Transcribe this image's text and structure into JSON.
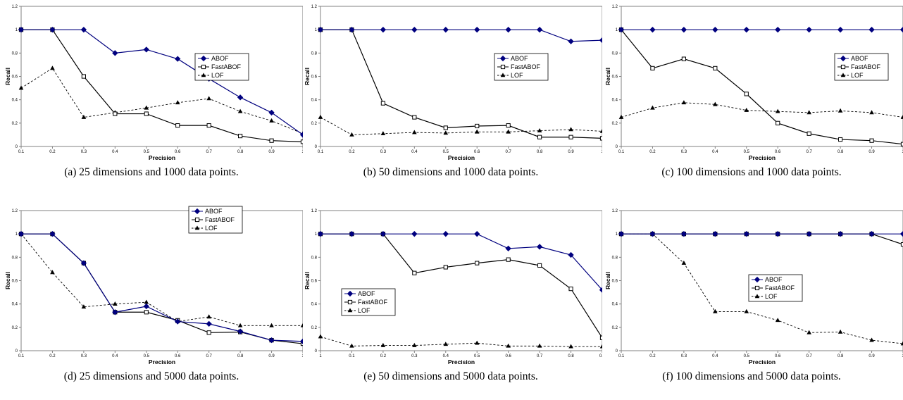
{
  "chart_data": [
    {
      "type": "line",
      "caption": "(a) 25 dimensions and 1000 data points.",
      "xlabel": "Precision",
      "ylabel": "Recall",
      "x": [
        0.1,
        0.2,
        0.3,
        0.4,
        0.5,
        0.6,
        0.7,
        0.8,
        0.9,
        1
      ],
      "x_ticks": [
        "0.1",
        "0.2",
        "0.3",
        "0.4",
        "0.5",
        "0.6",
        "0.7",
        "0.8",
        "0.9",
        "1"
      ],
      "y_ticks": [
        "0",
        "0.2",
        "0.4",
        "0.6",
        "0.8",
        "1",
        "1.2"
      ],
      "ylim": [
        0,
        1.2
      ],
      "legend_position": "right",
      "series": [
        {
          "name": "ABOF",
          "values": [
            1,
            1,
            1,
            0.8,
            0.83,
            0.75,
            0.58,
            0.42,
            0.29,
            0.1
          ]
        },
        {
          "name": "FastABOF",
          "values": [
            1,
            1,
            0.6,
            0.28,
            0.28,
            0.18,
            0.18,
            0.09,
            0.05,
            0.04
          ]
        },
        {
          "name": "LOF",
          "values": [
            0.5,
            0.67,
            0.25,
            0.29,
            0.33,
            0.375,
            0.41,
            0.3,
            0.22,
            0.11
          ]
        }
      ]
    },
    {
      "type": "line",
      "caption": "(b) 50 dimensions and 1000 data points.",
      "xlabel": "Precision",
      "ylabel": "Recall",
      "x": [
        0.1,
        0.2,
        0.3,
        0.4,
        0.5,
        0.6,
        0.7,
        0.8,
        0.9,
        1
      ],
      "x_ticks": [
        "0.1",
        "0.2",
        "0.3",
        "0.4",
        "0.5",
        "0.6",
        "0.7",
        "0.8",
        "0.9",
        "1"
      ],
      "y_ticks": [
        "0",
        "0.2",
        "0.4",
        "0.6",
        "0.8",
        "1",
        "1.2"
      ],
      "ylim": [
        0,
        1.2
      ],
      "legend_position": "right",
      "series": [
        {
          "name": "ABOF",
          "values": [
            1,
            1,
            1,
            1,
            1,
            1,
            1,
            1,
            0.9,
            0.91
          ]
        },
        {
          "name": "FastABOF",
          "values": [
            1,
            1,
            0.37,
            0.25,
            0.16,
            0.175,
            0.18,
            0.08,
            0.08,
            0.07
          ]
        },
        {
          "name": "LOF",
          "values": [
            0.25,
            0.1,
            0.11,
            0.12,
            0.115,
            0.125,
            0.125,
            0.135,
            0.145,
            0.13
          ]
        }
      ]
    },
    {
      "type": "line",
      "caption": "(c) 100 dimensions and 1000 data points.",
      "xlabel": "Precision",
      "ylabel": "Recall",
      "x": [
        0.1,
        0.2,
        0.3,
        0.4,
        0.5,
        0.6,
        0.7,
        0.8,
        0.9,
        1
      ],
      "x_ticks": [
        "0.1",
        "0.2",
        "0.3",
        "0.4",
        "0.5",
        "0.6",
        "0.7",
        "0.8",
        "0.9",
        "1"
      ],
      "y_ticks": [
        "0",
        "0.2",
        "0.4",
        "0.6",
        "0.8",
        "1",
        "1.2"
      ],
      "ylim": [
        0,
        1.2
      ],
      "legend_position": "right",
      "series": [
        {
          "name": "ABOF",
          "values": [
            1,
            1,
            1,
            1,
            1,
            1,
            1,
            1,
            1,
            1
          ]
        },
        {
          "name": "FastABOF",
          "values": [
            1,
            0.67,
            0.75,
            0.67,
            0.45,
            0.2,
            0.11,
            0.06,
            0.05,
            0.02
          ]
        },
        {
          "name": "LOF",
          "values": [
            0.25,
            0.33,
            0.375,
            0.36,
            0.31,
            0.3,
            0.29,
            0.305,
            0.29,
            0.25
          ]
        }
      ]
    },
    {
      "type": "line",
      "caption": "(d) 25 dimensions and 5000 data points.",
      "xlabel": "Precision",
      "ylabel": "Recall",
      "x": [
        0.1,
        0.2,
        0.3,
        0.4,
        0.5,
        0.6,
        0.7,
        0.8,
        0.9,
        1
      ],
      "x_ticks": [
        "0.1",
        "0.2",
        "0.3",
        "0.4",
        "0.5",
        "0.6",
        "0.7",
        "0.8",
        "0.9",
        "1"
      ],
      "y_ticks": [
        "0",
        "0.2",
        "0.4",
        "0.6",
        "0.8",
        "1",
        "1.2"
      ],
      "ylim": [
        0,
        1.2
      ],
      "legend_position": "top-right",
      "series": [
        {
          "name": "ABOF",
          "values": [
            1,
            1,
            0.75,
            0.33,
            0.38,
            0.25,
            0.23,
            0.165,
            0.09,
            0.08
          ]
        },
        {
          "name": "FastABOF",
          "values": [
            1,
            1,
            0.75,
            0.33,
            0.33,
            0.26,
            0.155,
            0.16,
            0.09,
            0.06
          ]
        },
        {
          "name": "LOF",
          "values": [
            1,
            0.67,
            0.375,
            0.4,
            0.415,
            0.25,
            0.29,
            0.215,
            0.215,
            0.215
          ]
        }
      ]
    },
    {
      "type": "line",
      "caption": "(e) 50 dimensions and 5000 data points.",
      "xlabel": "Precision",
      "ylabel": "Recall",
      "x": [
        1,
        0.1,
        0.2,
        0.3,
        0.4,
        0.5,
        0.6,
        0.7,
        0.8,
        0.9
      ],
      "x_ticks": [
        "1",
        "0.1",
        "0.2",
        "0.3",
        "0.4",
        "0.5",
        "0.6",
        "0.7",
        "0.8",
        "0.9"
      ],
      "y_ticks": [
        "0",
        "0.2",
        "0.4",
        "0.6",
        "0.8",
        "1",
        "1.2"
      ],
      "ylim": [
        0,
        1.2
      ],
      "legend_position": "bottom-left",
      "series": [
        {
          "name": "ABOF",
          "values": [
            1,
            1,
            1,
            1,
            1,
            1,
            0.875,
            0.89,
            0.82,
            0.52
          ]
        },
        {
          "name": "FastABOF",
          "values": [
            1,
            1,
            1,
            0.665,
            0.715,
            0.75,
            0.78,
            0.73,
            0.53,
            0.11
          ]
        },
        {
          "name": "LOF",
          "values": [
            0.12,
            0.04,
            0.045,
            0.045,
            0.055,
            0.065,
            0.04,
            0.04,
            0.035,
            0.035
          ]
        }
      ]
    },
    {
      "type": "line",
      "caption": "(f) 100 dimensions and 5000 data points.",
      "xlabel": "Precision",
      "ylabel": "Recall",
      "x": [
        0.1,
        0.2,
        0.3,
        0.4,
        0.5,
        0.6,
        0.7,
        0.8,
        0.9,
        1
      ],
      "x_ticks": [
        "0.1",
        "0.2",
        "0.3",
        "0.4",
        "0.5",
        "0.6",
        "0.7",
        "0.8",
        "0.9",
        "1"
      ],
      "y_ticks": [
        "0",
        "0.2",
        "0.4",
        "0.6",
        "0.8",
        "1",
        "1.2"
      ],
      "ylim": [
        0,
        1.2
      ],
      "legend_position": "center",
      "series": [
        {
          "name": "ABOF",
          "values": [
            1,
            1,
            1,
            1,
            1,
            1,
            1,
            1,
            1,
            1
          ]
        },
        {
          "name": "FastABOF",
          "values": [
            1,
            1,
            1,
            1,
            1,
            1,
            1,
            1,
            1,
            0.91
          ]
        },
        {
          "name": "LOF",
          "values": [
            1,
            1,
            0.75,
            0.335,
            0.335,
            0.26,
            0.155,
            0.16,
            0.09,
            0.06
          ]
        }
      ]
    }
  ],
  "series_style": {
    "ABOF": {
      "color": "#00007f",
      "marker": "diamond",
      "dash": "solid"
    },
    "FastABOF": {
      "color": "#000000",
      "marker": "square",
      "dash": "solid"
    },
    "LOF": {
      "color": "#000000",
      "marker": "triangle",
      "dash": "dashed"
    }
  }
}
